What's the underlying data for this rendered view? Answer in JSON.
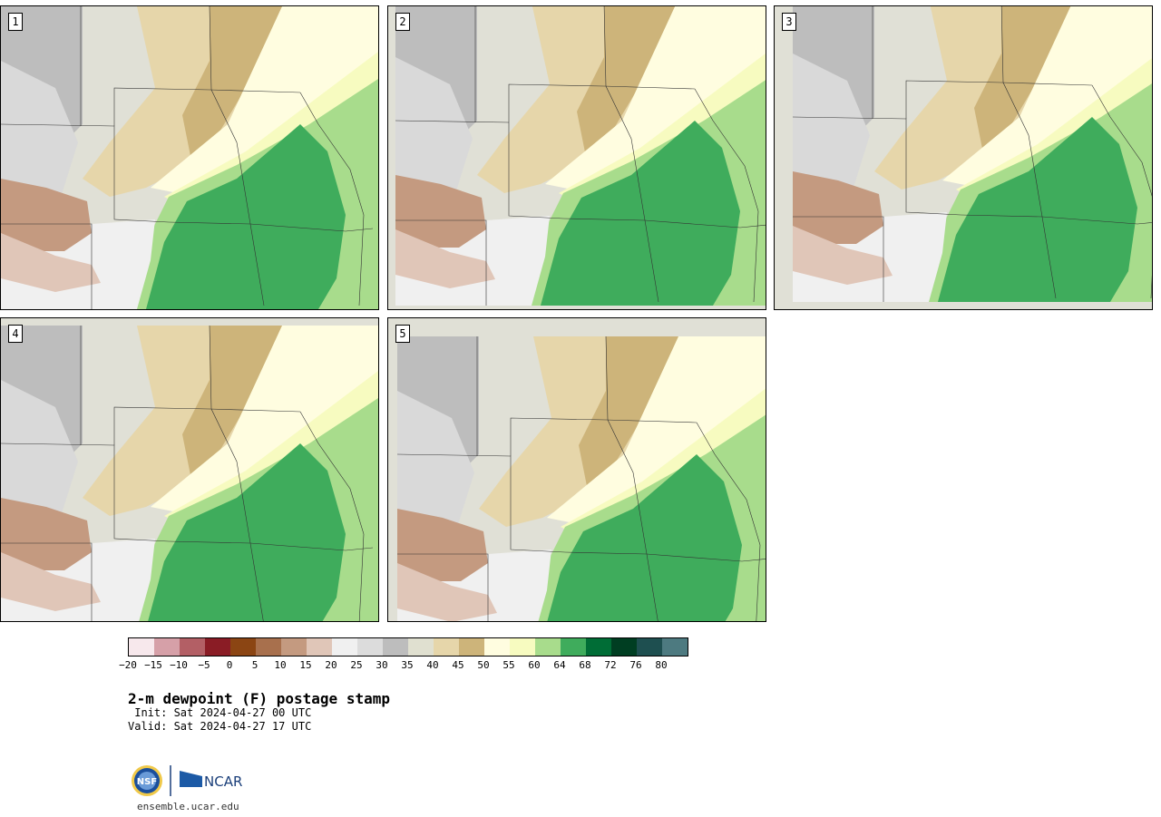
{
  "panels": [
    {
      "label": "1"
    },
    {
      "label": "2"
    },
    {
      "label": "3"
    },
    {
      "label": "4"
    },
    {
      "label": "5"
    }
  ],
  "colorbar": {
    "colors": [
      "#f7e8ec",
      "#d6a0a8",
      "#b35f65",
      "#8a1c25",
      "#8b4513",
      "#a8704d",
      "#c49a80",
      "#e0c6b8",
      "#f0f0f0",
      "#dcdcdc",
      "#bdbdbd",
      "#e0e0d0",
      "#e6d6aa",
      "#cdb47a",
      "#fffde0",
      "#f7fbc0",
      "#a8dc8c",
      "#3fac5c",
      "#006d36",
      "#003e22",
      "#1e4f50",
      "#4d7a80"
    ],
    "ticks": [
      "−20",
      "−15",
      "−10",
      "−5",
      "0",
      "5",
      "10",
      "15",
      "20",
      "25",
      "30",
      "35",
      "40",
      "45",
      "50",
      "55",
      "60",
      "64",
      "68",
      "72",
      "76",
      "80"
    ]
  },
  "title": "2-m dewpoint (F) postage stamp",
  "init": " Init: Sat 2024-04-27 00 UTC",
  "valid": "Valid: Sat 2024-04-27 17 UTC",
  "logos": {
    "nsf": "NSF",
    "ncar": "NCAR"
  },
  "site": "ensemble.ucar.edu"
}
